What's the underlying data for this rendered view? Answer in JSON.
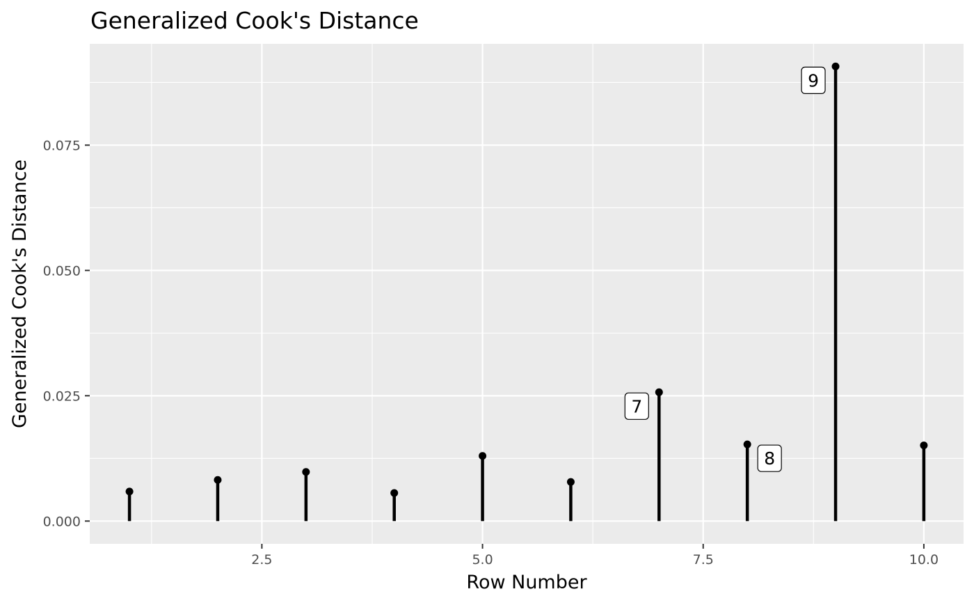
{
  "chart_data": {
    "type": "lollipop",
    "title": "Generalized Cook's Distance",
    "xlabel": "Row Number",
    "ylabel": "Generalized Cook's Distance",
    "x": [
      1,
      2,
      3,
      4,
      5,
      6,
      7,
      8,
      9,
      10
    ],
    "values": [
      0.0059,
      0.0082,
      0.0098,
      0.0056,
      0.013,
      0.0078,
      0.0257,
      0.0153,
      0.0907,
      0.0151
    ],
    "xlim": [
      0.55,
      10.45
    ],
    "ylim": [
      -0.00454,
      0.0952
    ],
    "x_ticks": [
      2.5,
      5.0,
      7.5,
      10.0
    ],
    "x_tick_labels": [
      "2.5",
      "5.0",
      "7.5",
      "10.0"
    ],
    "y_ticks": [
      0.0,
      0.025,
      0.05,
      0.075
    ],
    "y_tick_labels": [
      "0.000",
      "0.025",
      "0.050",
      "0.075"
    ],
    "labeled_points": [
      {
        "x": 7,
        "label": "7",
        "side": "left"
      },
      {
        "x": 8,
        "label": "8",
        "side": "right"
      },
      {
        "x": 9,
        "label": "9",
        "side": "left"
      }
    ],
    "grid": true,
    "colors": {
      "panel": "#ebebeb",
      "grid": "#ffffff",
      "mark": "#000000"
    }
  }
}
